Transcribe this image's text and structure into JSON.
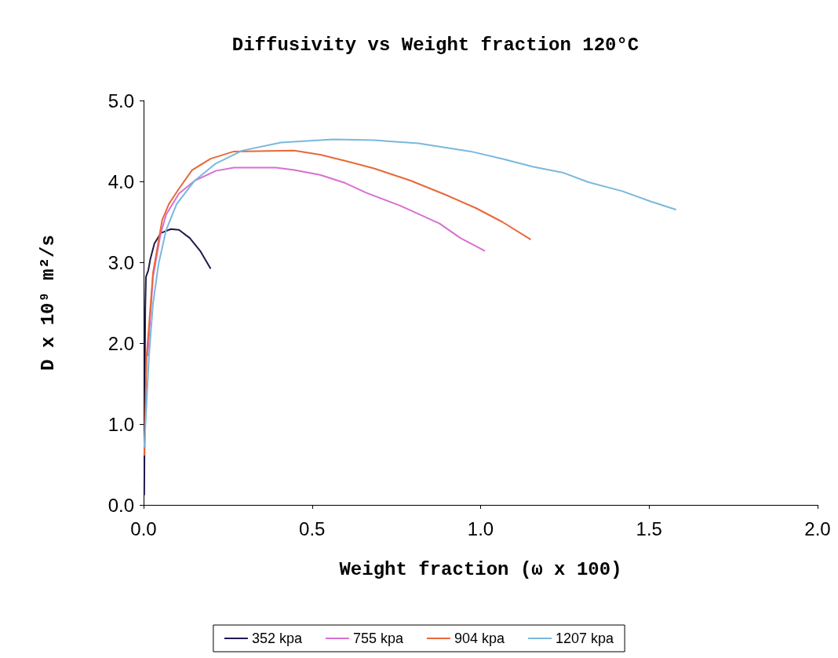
{
  "chart_data": {
    "type": "line",
    "title": "Diffusivity vs Weight fraction 120°C",
    "xlabel": "Weight fraction (ω x 100)",
    "ylabel": "D x 10⁹ m²/s",
    "xlim": [
      0,
      2.0
    ],
    "xticks": [
      {
        "value": 0,
        "label": "0.0"
      },
      {
        "value": 0.5,
        "label": "0.5"
      },
      {
        "value": 1.0,
        "label": "1.0"
      },
      {
        "value": 1.5,
        "label": "1.5"
      },
      {
        "value": 2.0,
        "label": "2.0"
      }
    ],
    "ylim": [
      0,
      5.0
    ],
    "yticks": [
      {
        "value": 0,
        "label": "0.0"
      },
      {
        "value": 1,
        "label": "1.0"
      },
      {
        "value": 2,
        "label": "2.0"
      },
      {
        "value": 3,
        "label": "3.0"
      },
      {
        "value": 4,
        "label": "4.0"
      },
      {
        "value": 5,
        "label": "5.0"
      }
    ],
    "grid": false,
    "legend": "bottom",
    "marker": "none",
    "line_style": "solid",
    "series": [
      {
        "name": "352 kpa",
        "color": "#1f1a4f",
        "x": [
          0.002,
          0.003,
          0.004,
          0.005,
          0.007,
          0.014,
          0.02,
          0.032,
          0.051,
          0.081,
          0.105,
          0.137,
          0.168,
          0.199
        ],
        "values": [
          0.12,
          0.87,
          1.84,
          2.43,
          2.82,
          2.9,
          3.04,
          3.23,
          3.36,
          3.41,
          3.4,
          3.3,
          3.14,
          2.92
        ]
      },
      {
        "name": "755 kpa",
        "color": "#d96fd0",
        "x": [
          0.012,
          0.028,
          0.051,
          0.067,
          0.105,
          0.152,
          0.214,
          0.268,
          0.393,
          0.447,
          0.524,
          0.598,
          0.66,
          0.761,
          0.878,
          0.94,
          1.013
        ],
        "values": [
          1.84,
          2.82,
          3.36,
          3.59,
          3.85,
          4.01,
          4.13,
          4.17,
          4.17,
          4.14,
          4.08,
          3.98,
          3.86,
          3.7,
          3.48,
          3.3,
          3.14
        ]
      },
      {
        "name": "904 kpa",
        "color": "#e8683a",
        "x": [
          0.002,
          0.009,
          0.028,
          0.055,
          0.075,
          0.105,
          0.144,
          0.199,
          0.268,
          0.447,
          0.524,
          0.602,
          0.684,
          0.792,
          0.893,
          0.986,
          1.064,
          1.149
        ],
        "values": [
          0.61,
          1.84,
          2.87,
          3.52,
          3.72,
          3.91,
          4.14,
          4.28,
          4.37,
          4.38,
          4.33,
          4.25,
          4.16,
          4.01,
          3.84,
          3.67,
          3.5,
          3.28
        ]
      },
      {
        "name": "1207 kpa",
        "color": "#7ab8dc",
        "x": [
          0.002,
          0.016,
          0.028,
          0.044,
          0.067,
          0.098,
          0.152,
          0.214,
          0.292,
          0.408,
          0.563,
          0.684,
          0.815,
          0.971,
          1.064,
          1.157,
          1.243,
          1.32,
          1.42,
          1.506,
          1.58
        ],
        "values": [
          0.71,
          1.84,
          2.49,
          2.97,
          3.4,
          3.72,
          4.01,
          4.22,
          4.38,
          4.48,
          4.52,
          4.51,
          4.47,
          4.37,
          4.28,
          4.18,
          4.11,
          3.99,
          3.88,
          3.75,
          3.65
        ]
      }
    ]
  }
}
